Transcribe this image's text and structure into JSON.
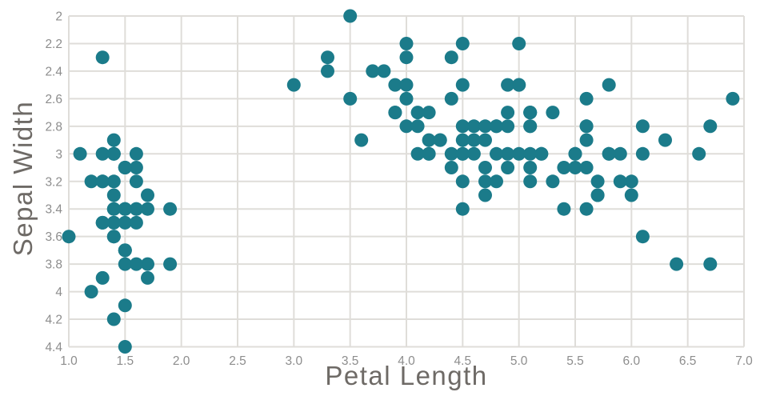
{
  "chart_data": {
    "type": "scatter",
    "xlabel": "Petal Length",
    "ylabel": "Sepal Width",
    "xlim": [
      1.0,
      7.0
    ],
    "ylim": [
      2.0,
      4.4
    ],
    "y_axis_reversed": true,
    "grid": true,
    "legend_position": "none",
    "x_tick_values": [
      1.0,
      1.5,
      2.0,
      2.5,
      3.0,
      3.5,
      4.0,
      4.5,
      5.0,
      5.5,
      6.0,
      6.5,
      7.0
    ],
    "x_tick_labels": [
      "1.0",
      "1.5",
      "2.0",
      "2.5",
      "3.0",
      "3.5",
      "4.0",
      "4.5",
      "5.0",
      "5.5",
      "6.0",
      "6.5",
      "7.0"
    ],
    "y_tick_values": [
      2.0,
      2.2,
      2.4,
      2.6,
      2.8,
      3.0,
      3.2,
      3.4,
      3.6,
      3.8,
      4.0,
      4.2,
      4.4
    ],
    "y_tick_labels": [
      "2",
      "2.2",
      "2.4",
      "2.6",
      "2.8",
      "3",
      "3.2",
      "3.4",
      "3.6",
      "3.8",
      "4",
      "4.2",
      "4.4"
    ],
    "marker_diameter_px": 17,
    "colors": {
      "marker": "#1b7b8a",
      "grid": "#dfddd9",
      "tick_label": "#8d8d8d",
      "axis_title": "#6e6a66",
      "background": "#ffffff"
    },
    "points": [
      [
        1.4,
        3.5
      ],
      [
        1.4,
        3.0
      ],
      [
        1.3,
        3.2
      ],
      [
        1.5,
        3.1
      ],
      [
        1.4,
        3.6
      ],
      [
        1.7,
        3.9
      ],
      [
        1.4,
        3.4
      ],
      [
        1.5,
        3.4
      ],
      [
        1.4,
        2.9
      ],
      [
        1.5,
        3.1
      ],
      [
        1.5,
        3.7
      ],
      [
        1.6,
        3.4
      ],
      [
        1.4,
        3.0
      ],
      [
        1.1,
        3.0
      ],
      [
        1.2,
        4.0
      ],
      [
        1.5,
        4.4
      ],
      [
        1.3,
        3.9
      ],
      [
        1.4,
        3.5
      ],
      [
        1.7,
        3.8
      ],
      [
        1.5,
        3.8
      ],
      [
        1.7,
        3.4
      ],
      [
        1.5,
        3.7
      ],
      [
        1.0,
        3.6
      ],
      [
        1.7,
        3.3
      ],
      [
        1.9,
        3.4
      ],
      [
        1.6,
        3.0
      ],
      [
        1.6,
        3.4
      ],
      [
        1.5,
        3.5
      ],
      [
        1.4,
        3.4
      ],
      [
        1.6,
        3.2
      ],
      [
        1.6,
        3.1
      ],
      [
        1.5,
        3.4
      ],
      [
        1.5,
        4.1
      ],
      [
        1.4,
        4.2
      ],
      [
        1.5,
        3.1
      ],
      [
        1.2,
        3.2
      ],
      [
        1.3,
        3.5
      ],
      [
        1.4,
        3.6
      ],
      [
        1.3,
        3.0
      ],
      [
        1.5,
        3.4
      ],
      [
        1.3,
        3.5
      ],
      [
        1.3,
        2.3
      ],
      [
        1.3,
        3.2
      ],
      [
        1.6,
        3.5
      ],
      [
        1.9,
        3.8
      ],
      [
        1.4,
        3.0
      ],
      [
        1.6,
        3.8
      ],
      [
        1.4,
        3.2
      ],
      [
        1.5,
        3.7
      ],
      [
        1.4,
        3.3
      ],
      [
        4.7,
        3.2
      ],
      [
        4.5,
        3.2
      ],
      [
        4.9,
        3.1
      ],
      [
        4.0,
        2.3
      ],
      [
        4.6,
        2.8
      ],
      [
        4.5,
        2.8
      ],
      [
        4.7,
        3.3
      ],
      [
        3.3,
        2.4
      ],
      [
        4.6,
        2.9
      ],
      [
        3.9,
        2.7
      ],
      [
        3.5,
        2.0
      ],
      [
        4.2,
        3.0
      ],
      [
        4.0,
        2.2
      ],
      [
        4.7,
        2.9
      ],
      [
        3.6,
        2.9
      ],
      [
        4.4,
        3.1
      ],
      [
        4.5,
        3.0
      ],
      [
        4.1,
        2.7
      ],
      [
        4.5,
        2.2
      ],
      [
        3.9,
        2.5
      ],
      [
        4.8,
        3.2
      ],
      [
        4.0,
        2.8
      ],
      [
        4.9,
        2.5
      ],
      [
        4.7,
        2.8
      ],
      [
        4.3,
        2.9
      ],
      [
        4.4,
        3.0
      ],
      [
        4.8,
        2.8
      ],
      [
        5.0,
        3.0
      ],
      [
        4.5,
        2.9
      ],
      [
        3.5,
        2.6
      ],
      [
        3.8,
        2.4
      ],
      [
        3.7,
        2.4
      ],
      [
        3.9,
        2.7
      ],
      [
        5.1,
        2.7
      ],
      [
        4.5,
        3.0
      ],
      [
        4.5,
        3.4
      ],
      [
        4.7,
        3.1
      ],
      [
        4.4,
        2.3
      ],
      [
        4.1,
        3.0
      ],
      [
        4.0,
        2.5
      ],
      [
        4.4,
        2.6
      ],
      [
        4.6,
        3.0
      ],
      [
        4.0,
        2.6
      ],
      [
        3.3,
        2.3
      ],
      [
        4.2,
        2.7
      ],
      [
        4.2,
        3.0
      ],
      [
        4.2,
        2.9
      ],
      [
        4.3,
        2.9
      ],
      [
        3.0,
        2.5
      ],
      [
        4.1,
        2.8
      ],
      [
        6.0,
        3.3
      ],
      [
        5.1,
        2.7
      ],
      [
        5.9,
        3.0
      ],
      [
        5.6,
        2.9
      ],
      [
        5.8,
        3.0
      ],
      [
        6.6,
        3.0
      ],
      [
        4.5,
        2.5
      ],
      [
        6.3,
        2.9
      ],
      [
        5.8,
        2.5
      ],
      [
        6.1,
        3.6
      ],
      [
        5.1,
        3.2
      ],
      [
        5.3,
        2.7
      ],
      [
        5.5,
        3.0
      ],
      [
        5.0,
        2.5
      ],
      [
        5.1,
        2.8
      ],
      [
        5.3,
        3.2
      ],
      [
        5.5,
        3.0
      ],
      [
        6.7,
        3.8
      ],
      [
        6.9,
        2.6
      ],
      [
        5.0,
        2.2
      ],
      [
        5.7,
        3.2
      ],
      [
        4.9,
        2.8
      ],
      [
        6.7,
        2.8
      ],
      [
        4.9,
        2.7
      ],
      [
        5.7,
        3.3
      ],
      [
        6.0,
        3.2
      ],
      [
        4.8,
        2.8
      ],
      [
        4.9,
        3.0
      ],
      [
        5.6,
        2.8
      ],
      [
        5.8,
        3.0
      ],
      [
        6.1,
        2.8
      ],
      [
        6.4,
        3.8
      ],
      [
        5.6,
        2.8
      ],
      [
        5.1,
        2.8
      ],
      [
        5.6,
        2.6
      ],
      [
        6.1,
        3.0
      ],
      [
        5.6,
        3.4
      ],
      [
        5.5,
        3.1
      ],
      [
        4.8,
        3.0
      ],
      [
        5.4,
        3.1
      ],
      [
        5.6,
        3.1
      ],
      [
        5.1,
        3.1
      ],
      [
        5.1,
        2.7
      ],
      [
        5.9,
        3.2
      ],
      [
        5.7,
        3.3
      ],
      [
        5.2,
        3.0
      ],
      [
        5.0,
        2.5
      ],
      [
        5.2,
        3.0
      ],
      [
        5.4,
        3.4
      ],
      [
        5.1,
        3.0
      ]
    ]
  }
}
